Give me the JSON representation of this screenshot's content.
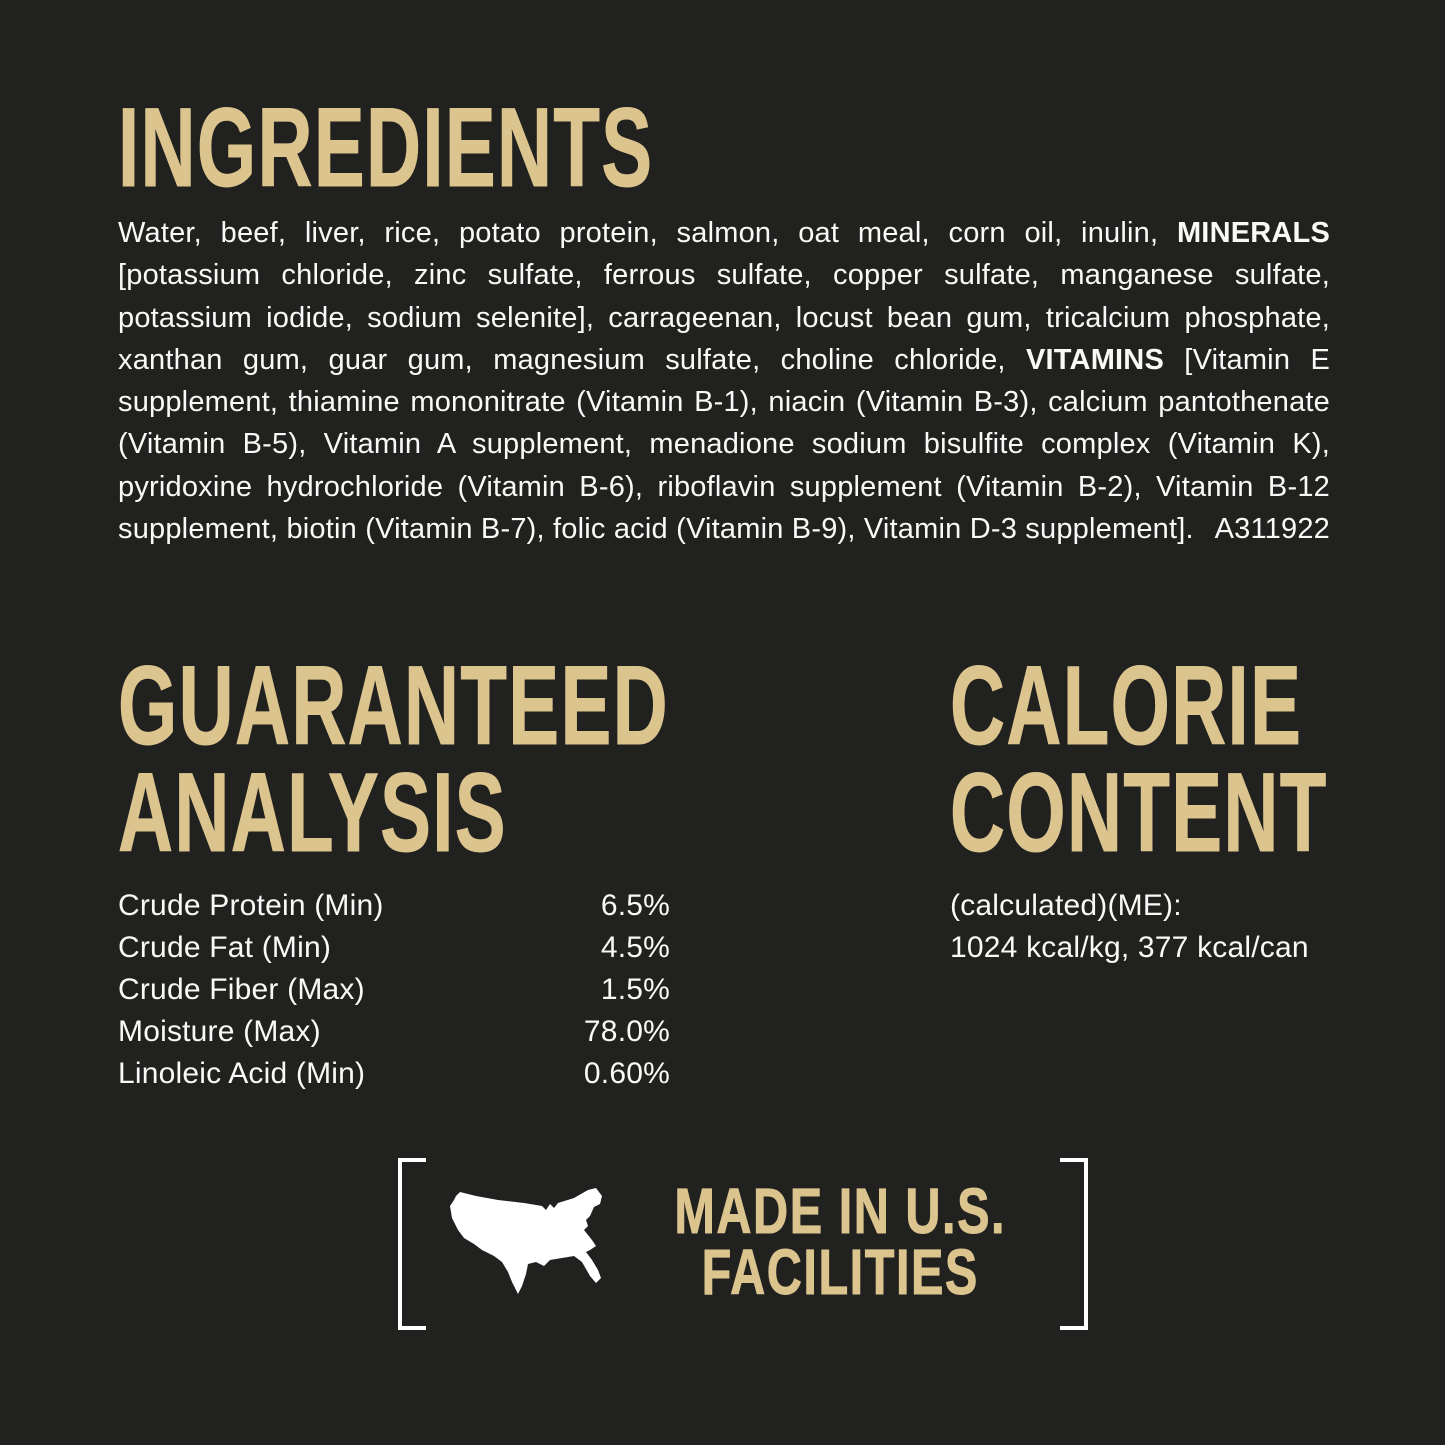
{
  "colors": {
    "background": "#212120",
    "gold": "#DCC48E",
    "white": "#FAF9F7"
  },
  "ingredients": {
    "title": "INGREDIENTS",
    "segments": [
      {
        "text": "Water, beef, liver, rice, potato protein, salmon, oat meal, corn oil, inulin, ",
        "bold": false
      },
      {
        "text": "MINERALS",
        "bold": true
      },
      {
        "text": " [potassium chloride, zinc sulfate, ferrous sulfate, copper sulfate, manganese sulfate, potassium iodide, sodium selenite], carrageenan, locust bean gum, tricalcium phosphate, xanthan gum, guar gum, magnesium sulfate, choline chloride, ",
        "bold": false
      },
      {
        "text": "VITAMINS",
        "bold": true
      },
      {
        "text": " [Vitamin E supplement, thiamine mononitrate (Vitamin B-1), niacin (Vitamin B-3), calcium pantothenate (Vitamin B-5), Vitamin A supplement, menadione sodium bisulfite complex (Vitamin K), pyridoxine hydrochloride (Vitamin B-6), riboflavin supplement (Vitamin B-2), Vitamin B-12 supplement, biotin (Vitamin B-7), folic acid (Vitamin B-9), Vitamin D-3 supplement].",
        "bold": false
      }
    ],
    "code": "A311922"
  },
  "guaranteed_analysis": {
    "title_line1": "GUARANTEED",
    "title_line2": "ANALYSIS",
    "rows": [
      {
        "label": "Crude Protein (Min)",
        "value": "6.5%"
      },
      {
        "label": "Crude Fat (Min)",
        "value": "4.5%"
      },
      {
        "label": "Crude Fiber (Max)",
        "value": "1.5%"
      },
      {
        "label": "Moisture (Max)",
        "value": "78.0%"
      },
      {
        "label": "Linoleic Acid (Min)",
        "value": "0.60%"
      }
    ]
  },
  "calorie_content": {
    "title_line1": "CALORIE",
    "title_line2": "CONTENT",
    "line1": "(calculated)(ME):",
    "line2": "1024 kcal/kg, 377 kcal/can"
  },
  "made_in": {
    "line1": "MADE IN U.S.",
    "line2": "FACILITIES",
    "icon": "usa-map-icon"
  }
}
